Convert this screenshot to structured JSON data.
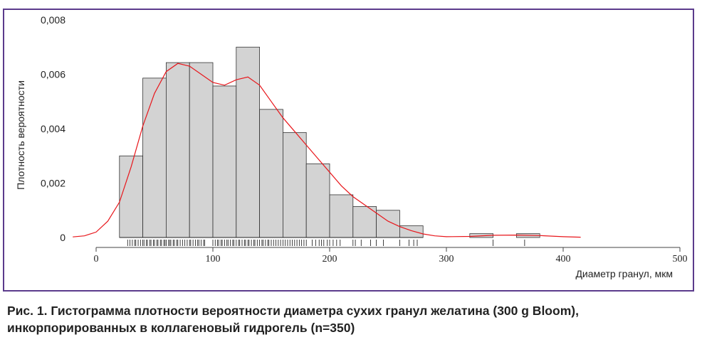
{
  "chart_data": {
    "type": "bar",
    "subtype": "histogram-with-density",
    "xlabel": "Диаметр гранул, мкм",
    "ylabel": "Плотность вероятности",
    "xlim": [
      -20,
      500
    ],
    "ylim": [
      0,
      0.008
    ],
    "xticks": [
      0,
      100,
      200,
      300,
      400,
      500
    ],
    "xtick_labels": [
      "0",
      "100",
      "200",
      "300",
      "400",
      "500"
    ],
    "yticks": [
      0,
      0.002,
      0.004,
      0.006,
      0.008
    ],
    "ytick_labels": [
      "0",
      "0,002",
      "0,004",
      "0,006",
      "0,008"
    ],
    "bin_width": 20,
    "bins": [
      {
        "from": 20,
        "to": 40,
        "density": 0.003
      },
      {
        "from": 40,
        "to": 60,
        "density": 0.00586
      },
      {
        "from": 60,
        "to": 80,
        "density": 0.00643
      },
      {
        "from": 80,
        "to": 100,
        "density": 0.00643
      },
      {
        "from": 100,
        "to": 120,
        "density": 0.00557
      },
      {
        "from": 120,
        "to": 140,
        "density": 0.007
      },
      {
        "from": 140,
        "to": 160,
        "density": 0.00471
      },
      {
        "from": 160,
        "to": 180,
        "density": 0.00386
      },
      {
        "from": 180,
        "to": 200,
        "density": 0.00271
      },
      {
        "from": 200,
        "to": 220,
        "density": 0.00157
      },
      {
        "from": 220,
        "to": 240,
        "density": 0.00114
      },
      {
        "from": 240,
        "to": 260,
        "density": 0.001
      },
      {
        "from": 260,
        "to": 280,
        "density": 0.00043
      },
      {
        "from": 320,
        "to": 340,
        "density": 0.00014
      },
      {
        "from": 360,
        "to": 380,
        "density": 0.00014
      }
    ],
    "density_curve": {
      "color": "#e8161b",
      "x": [
        -20,
        -10,
        0,
        10,
        20,
        30,
        40,
        50,
        60,
        70,
        80,
        90,
        100,
        110,
        120,
        130,
        140,
        150,
        160,
        170,
        180,
        190,
        200,
        210,
        220,
        230,
        240,
        250,
        260,
        270,
        280,
        290,
        300,
        320,
        340,
        360,
        380,
        400,
        415
      ],
      "y": [
        2e-05,
        6e-05,
        0.0002,
        0.0006,
        0.0013,
        0.0026,
        0.0041,
        0.0053,
        0.0061,
        0.0064,
        0.0063,
        0.006,
        0.0057,
        0.0056,
        0.0058,
        0.0059,
        0.0056,
        0.005,
        0.0044,
        0.0039,
        0.0034,
        0.0029,
        0.0024,
        0.0019,
        0.0015,
        0.0012,
        0.0009,
        0.0006,
        0.0004,
        0.00025,
        0.00013,
        6e-05,
        3e-05,
        4e-05,
        8e-05,
        9e-05,
        7e-05,
        3e-05,
        1e-05
      ]
    },
    "rug": [
      27,
      29,
      31,
      33,
      34,
      36,
      38,
      40,
      41,
      43,
      44,
      46,
      47,
      49,
      50,
      52,
      53,
      55,
      56,
      58,
      59,
      60,
      62,
      63,
      64,
      66,
      67,
      69,
      70,
      72,
      74,
      76,
      78,
      80,
      81,
      83,
      85,
      87,
      88,
      90,
      92,
      93,
      100,
      102,
      104,
      105,
      107,
      108,
      110,
      112,
      113,
      115,
      117,
      118,
      120,
      122,
      123,
      125,
      127,
      128,
      130,
      131,
      133,
      135,
      136,
      138,
      140,
      142,
      143,
      145,
      147,
      148,
      150,
      152,
      154,
      156,
      158,
      160,
      162,
      164,
      166,
      168,
      170,
      172,
      174,
      176,
      178,
      180,
      185,
      188,
      191,
      193,
      195,
      198,
      200,
      203,
      206,
      209,
      220,
      222,
      227,
      235,
      240,
      246,
      260,
      268,
      272,
      275,
      340,
      367
    ],
    "grid": false,
    "legend": "none"
  },
  "caption": {
    "line1": "Рис. 1. Гистограмма плотности вероятности диаметра сухих гранул желатина (300 g Bloom),",
    "line2": "инкорпорированных в коллагеновый гидрогель (n=350)"
  },
  "colors": {
    "frame": "#5b3b8c",
    "bar_fill": "#d3d3d3",
    "bar_stroke": "#333333",
    "curve": "#e8161b"
  }
}
